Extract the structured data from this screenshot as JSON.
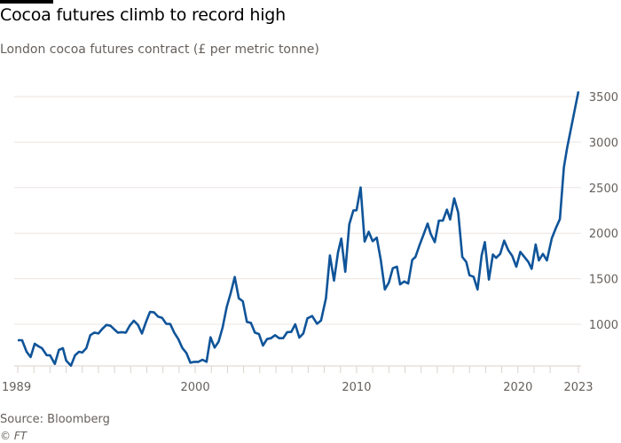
{
  "chart_data": {
    "type": "line",
    "title": "Cocoa futures climb to record high",
    "subtitle": "London cocoa futures contract (£ per metric tonne)",
    "source": "Source: Bloomberg",
    "credit": "© FT",
    "line_color": "#0f5499",
    "grid": true,
    "y_axis_side": "right",
    "ylim": [
      545,
      3600
    ],
    "xlim": [
      1989,
      2023.75
    ],
    "yticks": [
      1000,
      1500,
      2000,
      2500,
      3000,
      3500
    ],
    "ytick_labels": [
      "1000",
      "1500",
      "2000",
      "2500",
      "3000",
      "3500"
    ],
    "xtick_labels": [
      {
        "label": "1989",
        "x": 1989
      },
      {
        "label": "2000",
        "x": 2000
      },
      {
        "label": "2010",
        "x": 2010
      },
      {
        "label": "2020",
        "x": 2020
      },
      {
        "label": "2023",
        "x": 2023.75
      }
    ],
    "series": [
      {
        "x": [
          1989.0,
          1989.27,
          1989.55,
          1989.8,
          1990.05,
          1990.3,
          1990.5,
          1990.8,
          1991.0,
          1991.3,
          1991.55,
          1991.8,
          1992.0,
          1992.3,
          1992.55,
          1992.8,
          1993.0,
          1993.25,
          1993.5,
          1993.75,
          1994.0,
          1994.25,
          1994.5,
          1994.75,
          1995.0,
          1995.2,
          1995.45,
          1995.7,
          1995.95,
          1996.2,
          1996.45,
          1996.7,
          1996.95,
          1997.2,
          1997.45,
          1997.7,
          1997.95,
          1998.2,
          1998.45,
          1998.7,
          1998.95,
          1999.2,
          1999.45,
          1999.7,
          1999.95,
          2000.2,
          2000.45,
          2000.7,
          2000.95,
          2001.2,
          2001.45,
          2001.7,
          2001.95,
          2002.2,
          2002.45,
          2002.7,
          2002.95,
          2003.2,
          2003.45,
          2003.7,
          2003.95,
          2004.2,
          2004.45,
          2004.7,
          2004.95,
          2005.2,
          2005.45,
          2005.7,
          2005.95,
          2006.2,
          2006.45,
          2006.7,
          2006.95,
          2007.25,
          2007.55,
          2007.8,
          2008.1,
          2008.35,
          2008.6,
          2008.85,
          2009.05,
          2009.3,
          2009.55,
          2009.8,
          2010.0,
          2010.25,
          2010.5,
          2010.75,
          2011.0,
          2011.25,
          2011.5,
          2011.75,
          2012.0,
          2012.25,
          2012.5,
          2012.7,
          2012.95,
          2013.2,
          2013.45,
          2013.65,
          2013.9,
          2014.15,
          2014.4,
          2014.6,
          2014.85,
          2015.1,
          2015.35,
          2015.6,
          2015.8,
          2016.05,
          2016.3,
          2016.55,
          2016.8,
          2017.0,
          2017.25,
          2017.5,
          2017.75,
          2017.95,
          2018.2,
          2018.45,
          2018.65,
          2018.9,
          2019.15,
          2019.4,
          2019.65,
          2019.9,
          2020.15,
          2020.4,
          2020.65,
          2020.85,
          2021.1,
          2021.3,
          2021.55,
          2021.8,
          2022.1,
          2022.35,
          2022.6,
          2022.85,
          2023.05,
          2023.75
        ],
        "values": [
          825,
          825,
          698,
          640,
          786,
          757,
          737,
          660,
          660,
          565,
          718,
          737,
          601,
          546,
          660,
          698,
          690,
          737,
          880,
          909,
          899,
          951,
          993,
          983,
          942,
          909,
          913,
          909,
          987,
          1039,
          993,
          899,
          1026,
          1136,
          1130,
          1084,
          1070,
          1006,
          1003,
          909,
          838,
          740,
          685,
          578,
          588,
          588,
          611,
          588,
          857,
          744,
          808,
          968,
          1188,
          1343,
          1519,
          1285,
          1253,
          1026,
          1016,
          909,
          893,
          767,
          838,
          847,
          880,
          847,
          847,
          913,
          916,
          1000,
          854,
          899,
          1065,
          1090,
          1006,
          1042,
          1285,
          1756,
          1480,
          1789,
          1941,
          1577,
          2096,
          2249,
          2252,
          2502,
          1909,
          2016,
          1912,
          1950,
          1707,
          1382,
          1457,
          1616,
          1632,
          1438,
          1470,
          1447,
          1707,
          1739,
          1869,
          1983,
          2106,
          1990,
          1902,
          2138,
          2138,
          2259,
          2151,
          2382,
          2226,
          1739,
          1684,
          1538,
          1522,
          1382,
          1756,
          1902,
          1490,
          1766,
          1730,
          1772,
          1918,
          1814,
          1750,
          1632,
          1795,
          1739,
          1684,
          1609,
          1876,
          1701,
          1772,
          1701,
          1944,
          2054,
          2155,
          2722,
          2939,
          3556
        ]
      }
    ]
  }
}
